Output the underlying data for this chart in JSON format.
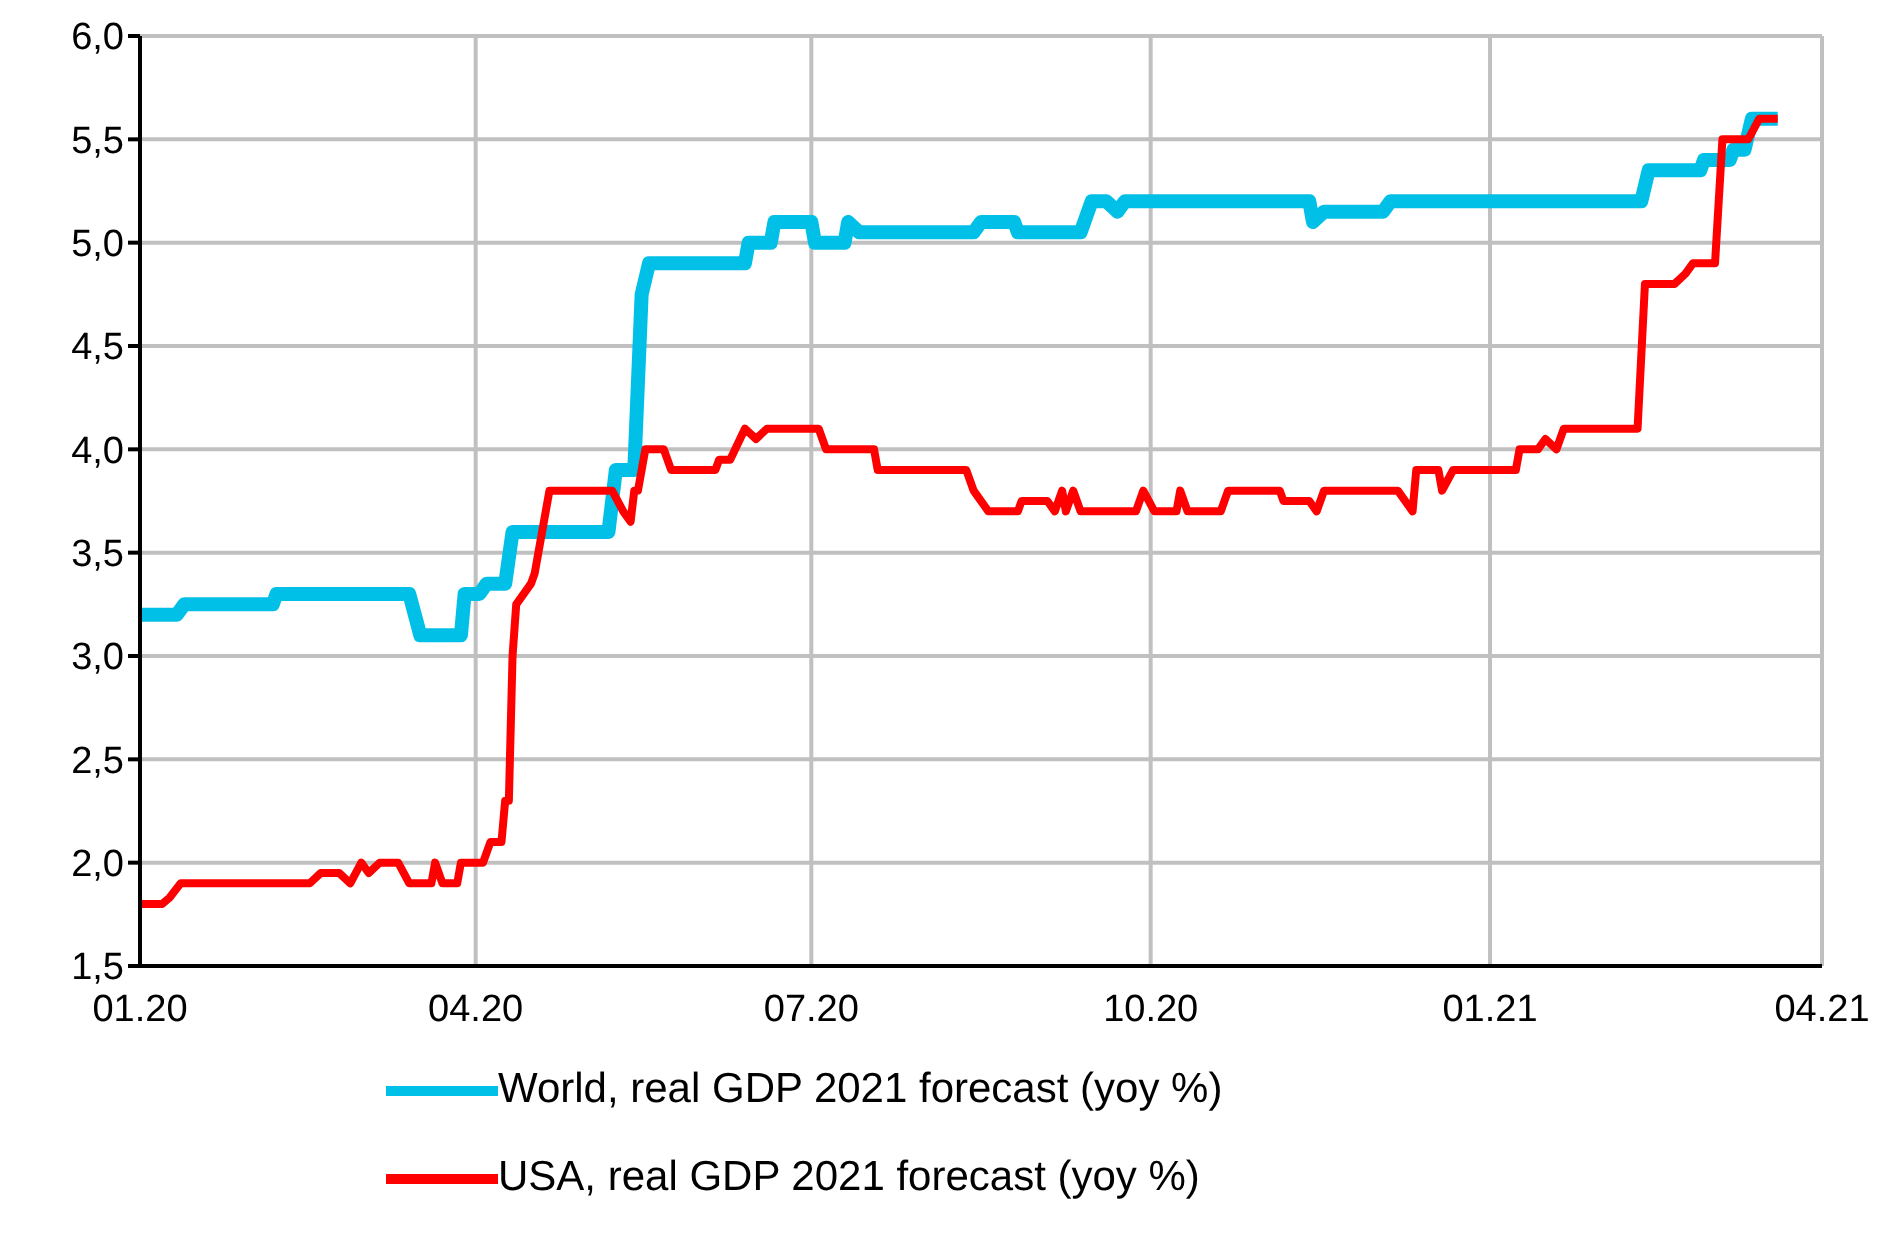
{
  "chart_data": {
    "type": "line",
    "grid": true,
    "legend": "bottom",
    "marker": "none",
    "line_style": "solid",
    "xlim": [
      "2020-01-01",
      "2021-04-01"
    ],
    "xticks": [
      {
        "value": "2020-01-01",
        "label": "01.20"
      },
      {
        "value": "2020-04-01",
        "label": "04.20"
      },
      {
        "value": "2020-07-01",
        "label": "07.20"
      },
      {
        "value": "2020-10-01",
        "label": "10.20"
      },
      {
        "value": "2021-01-01",
        "label": "01.21"
      },
      {
        "value": "2021-04-01",
        "label": "04.21"
      }
    ],
    "ylim": [
      1.5,
      6
    ],
    "yticks": [
      {
        "value": 1.5,
        "label": "1,5"
      },
      {
        "value": 2,
        "label": "2,0"
      },
      {
        "value": 2.5,
        "label": "2,5"
      },
      {
        "value": 3,
        "label": "3,0"
      },
      {
        "value": 3.5,
        "label": "3,5"
      },
      {
        "value": 4,
        "label": "4,0"
      },
      {
        "value": 4.5,
        "label": "4,5"
      },
      {
        "value": 5,
        "label": "5,0"
      },
      {
        "value": 5.5,
        "label": "5,5"
      },
      {
        "value": 6,
        "label": "6,0"
      }
    ],
    "series": [
      {
        "name": "World, real GDP 2021 forecast (yoy %)",
        "color": "#00c0e8",
        "x": [
          "2020-01-01",
          "2020-01-11",
          "2020-01-13",
          "2020-02-06",
          "2020-02-07",
          "2020-03-14",
          "2020-03-17",
          "2020-03-28",
          "2020-03-29",
          "2020-04-02",
          "2020-04-04",
          "2020-04-09",
          "2020-04-11",
          "2020-05-07",
          "2020-05-09",
          "2020-05-14",
          "2020-05-16",
          "2020-05-18",
          "2020-06-13",
          "2020-06-14",
          "2020-06-20",
          "2020-06-21",
          "2020-07-01",
          "2020-07-02",
          "2020-07-10",
          "2020-07-11",
          "2020-07-14",
          "2020-08-14",
          "2020-08-16",
          "2020-08-25",
          "2020-08-26",
          "2020-09-12",
          "2020-09-15",
          "2020-09-19",
          "2020-09-22",
          "2020-09-24",
          "2020-11-13",
          "2020-11-14",
          "2020-11-17",
          "2020-12-03",
          "2020-12-05",
          "2021-02-11",
          "2021-02-13",
          "2021-02-27",
          "2021-02-28",
          "2021-03-07",
          "2021-03-08",
          "2021-03-11",
          "2021-03-13",
          "2021-03-20"
        ],
        "values": [
          3.2,
          3.2,
          3.25,
          3.25,
          3.3,
          3.3,
          3.1,
          3.1,
          3.3,
          3.3,
          3.35,
          3.35,
          3.6,
          3.6,
          3.9,
          3.9,
          4.75,
          4.9,
          4.9,
          5.0,
          5.0,
          5.1,
          5.1,
          5.0,
          5.0,
          5.1,
          5.05,
          5.05,
          5.1,
          5.1,
          5.05,
          5.05,
          5.2,
          5.2,
          5.15,
          5.2,
          5.2,
          5.1,
          5.15,
          5.15,
          5.2,
          5.2,
          5.35,
          5.35,
          5.4,
          5.4,
          5.45,
          5.45,
          5.6,
          5.6
        ]
      },
      {
        "name": "USA, real GDP 2021 forecast (yoy %)",
        "color": "#ff0000",
        "x": [
          "2020-01-01",
          "2020-01-07",
          "2020-01-09",
          "2020-01-12",
          "2020-02-16",
          "2020-02-19",
          "2020-02-24",
          "2020-02-27",
          "2020-03-01",
          "2020-03-03",
          "2020-03-06",
          "2020-03-11",
          "2020-03-14",
          "2020-03-20",
          "2020-03-21",
          "2020-03-23",
          "2020-03-27",
          "2020-03-28",
          "2020-04-03",
          "2020-04-05",
          "2020-04-08",
          "2020-04-09",
          "2020-04-10",
          "2020-04-11",
          "2020-04-12",
          "2020-04-16",
          "2020-04-17",
          "2020-04-21",
          "2020-05-08",
          "2020-05-11",
          "2020-05-13",
          "2020-05-14",
          "2020-05-15",
          "2020-05-17",
          "2020-05-22",
          "2020-05-24",
          "2020-06-05",
          "2020-06-06",
          "2020-06-09",
          "2020-06-13",
          "2020-06-16",
          "2020-06-19",
          "2020-07-03",
          "2020-07-05",
          "2020-07-18",
          "2020-07-19",
          "2020-08-12",
          "2020-08-14",
          "2020-08-18",
          "2020-08-26",
          "2020-08-27",
          "2020-09-03",
          "2020-09-05",
          "2020-09-07",
          "2020-09-08",
          "2020-09-10",
          "2020-09-12",
          "2020-09-27",
          "2020-09-29",
          "2020-10-02",
          "2020-10-08",
          "2020-10-09",
          "2020-10-11",
          "2020-10-20",
          "2020-10-22",
          "2020-11-05",
          "2020-11-06",
          "2020-11-13",
          "2020-11-15",
          "2020-11-17",
          "2020-12-07",
          "2020-12-11",
          "2020-12-12",
          "2020-12-18",
          "2020-12-19",
          "2020-12-22",
          "2021-01-08",
          "2021-01-09",
          "2021-01-14",
          "2021-01-16",
          "2021-01-19",
          "2021-01-21",
          "2021-02-10",
          "2021-02-12",
          "2021-02-20",
          "2021-02-23",
          "2021-02-25",
          "2021-03-03",
          "2021-03-05",
          "2021-03-12",
          "2021-03-15",
          "2021-03-20"
        ],
        "values": [
          1.8,
          1.8,
          1.83,
          1.9,
          1.9,
          1.95,
          1.95,
          1.9,
          2.0,
          1.95,
          2.0,
          2.0,
          1.9,
          1.9,
          2.0,
          1.9,
          1.9,
          2.0,
          2.0,
          2.1,
          2.1,
          2.3,
          2.3,
          3.0,
          3.25,
          3.35,
          3.4,
          3.8,
          3.8,
          3.7,
          3.65,
          3.8,
          3.8,
          4.0,
          4.0,
          3.9,
          3.9,
          3.95,
          3.95,
          4.1,
          4.05,
          4.1,
          4.1,
          4.0,
          4.0,
          3.9,
          3.9,
          3.8,
          3.7,
          3.7,
          3.75,
          3.75,
          3.7,
          3.8,
          3.7,
          3.8,
          3.7,
          3.7,
          3.8,
          3.7,
          3.7,
          3.8,
          3.7,
          3.7,
          3.8,
          3.8,
          3.75,
          3.75,
          3.7,
          3.8,
          3.8,
          3.7,
          3.9,
          3.9,
          3.8,
          3.9,
          3.9,
          4.0,
          4.0,
          4.05,
          4.0,
          4.1,
          4.1,
          4.8,
          4.8,
          4.85,
          4.9,
          4.9,
          5.5,
          5.5,
          5.6,
          5.6
        ]
      }
    ]
  }
}
